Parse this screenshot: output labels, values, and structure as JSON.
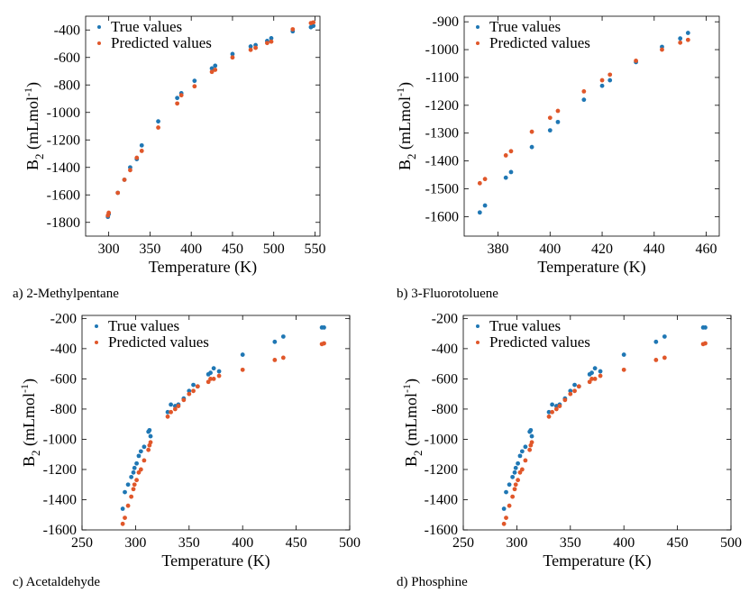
{
  "colors": {
    "true": "#1f77b4",
    "pred": "#e0572a",
    "axis": "#000000"
  },
  "legend_labels": {
    "true": "True values",
    "pred": "Predicted values"
  },
  "chart_data": [
    {
      "type": "scatter",
      "caption": "a) 2-Methylpentane",
      "xlabel": "Temperature (K)",
      "ylabel_main": "B",
      "ylabel_sub": "2",
      "ylabel_rest": " (mLmol",
      "ylabel_sup": "-1",
      "ylabel_end": ")",
      "xlim": [
        272,
        556
      ],
      "ylim": [
        -1900,
        -300
      ],
      "xticks": [
        "300",
        "350",
        "400",
        "450",
        "500",
        "550"
      ],
      "yticks": [
        "-1800",
        "-1600",
        "-1400",
        "-1200",
        "-1000",
        "-800",
        "-600",
        "-400"
      ],
      "series": [
        {
          "name": "True values",
          "x": [
            299,
            300,
            311,
            319,
            326,
            334,
            340,
            360,
            383,
            388,
            404,
            425,
            429,
            450,
            472,
            478,
            492,
            497,
            523,
            545,
            548
          ],
          "y": [
            -1760,
            -1740,
            -1585,
            -1490,
            -1400,
            -1340,
            -1240,
            -1065,
            -895,
            -860,
            -770,
            -680,
            -660,
            -575,
            -520,
            -510,
            -480,
            -460,
            -410,
            -380,
            -370
          ]
        },
        {
          "name": "Predicted values",
          "x": [
            299,
            300,
            311,
            319,
            326,
            334,
            340,
            360,
            383,
            388,
            404,
            425,
            429,
            450,
            472,
            478,
            492,
            497,
            523,
            545,
            548
          ],
          "y": [
            -1750,
            -1730,
            -1585,
            -1490,
            -1420,
            -1330,
            -1280,
            -1110,
            -935,
            -875,
            -810,
            -705,
            -690,
            -600,
            -545,
            -530,
            -495,
            -485,
            -395,
            -350,
            -345
          ]
        }
      ]
    },
    {
      "type": "scatter",
      "caption": "b) 3-Fluorotoluene",
      "xlabel": "Temperature (K)",
      "ylabel_main": "B",
      "ylabel_sub": "2",
      "ylabel_rest": " (mLmol",
      "ylabel_sup": "-1",
      "ylabel_end": ")",
      "xlim": [
        367,
        465
      ],
      "ylim": [
        -1670,
        -880
      ],
      "xticks": [
        "380",
        "400",
        "420",
        "440",
        "460"
      ],
      "yticks": [
        "-1600",
        "-1500",
        "-1400",
        "-1300",
        "-1200",
        "-1100",
        "-1000",
        "-900"
      ],
      "series": [
        {
          "name": "True values",
          "x": [
            373,
            375,
            383,
            385,
            393,
            400,
            403,
            413,
            420,
            423,
            433,
            443,
            450,
            453
          ],
          "y": [
            -1585,
            -1560,
            -1460,
            -1440,
            -1350,
            -1290,
            -1260,
            -1180,
            -1130,
            -1110,
            -1045,
            -990,
            -960,
            -940
          ]
        },
        {
          "name": "Predicted values",
          "x": [
            373,
            375,
            383,
            385,
            393,
            400,
            403,
            413,
            420,
            423,
            433,
            443,
            450,
            453
          ],
          "y": [
            -1480,
            -1465,
            -1380,
            -1365,
            -1295,
            -1245,
            -1220,
            -1150,
            -1110,
            -1090,
            -1040,
            -1000,
            -975,
            -965
          ]
        }
      ]
    },
    {
      "type": "scatter",
      "caption": "c) Acetaldehyde",
      "xlabel": "Temperature (K)",
      "ylabel_main": "B",
      "ylabel_sub": "2",
      "ylabel_rest": " (mLmol",
      "ylabel_sup": "-1",
      "ylabel_end": ")",
      "xlim": [
        250,
        500
      ],
      "ylim": [
        -1600,
        -180
      ],
      "xticks": [
        "250",
        "300",
        "350",
        "400",
        "450",
        "500"
      ],
      "yticks": [
        "-1600",
        "-1400",
        "-1200",
        "-1000",
        "-800",
        "-600",
        "-400",
        "-200"
      ],
      "series": [
        {
          "name": "True values",
          "x": [
            288,
            290,
            293,
            296,
            298,
            299,
            301,
            303,
            305,
            308,
            312,
            313,
            314,
            330,
            333,
            337,
            340,
            345,
            350,
            354,
            358,
            368,
            370,
            373,
            378,
            400,
            430,
            438,
            474,
            476
          ],
          "y": [
            -1460,
            -1350,
            -1300,
            -1250,
            -1220,
            -1190,
            -1160,
            -1110,
            -1080,
            -1050,
            -950,
            -940,
            -980,
            -820,
            -770,
            -780,
            -770,
            -730,
            -680,
            -640,
            -650,
            -570,
            -560,
            -530,
            -550,
            -440,
            -355,
            -320,
            -260,
            -260
          ]
        },
        {
          "name": "Predicted values",
          "x": [
            288,
            290,
            293,
            296,
            298,
            299,
            301,
            303,
            305,
            308,
            312,
            313,
            314,
            330,
            333,
            337,
            340,
            345,
            350,
            354,
            358,
            368,
            370,
            373,
            378,
            400,
            430,
            438,
            474,
            476
          ],
          "y": [
            -1560,
            -1520,
            -1440,
            -1380,
            -1330,
            -1300,
            -1270,
            -1220,
            -1200,
            -1140,
            -1070,
            -1040,
            -1020,
            -850,
            -820,
            -800,
            -780,
            -740,
            -700,
            -680,
            -650,
            -620,
            -600,
            -600,
            -580,
            -540,
            -475,
            -460,
            -370,
            -365
          ]
        }
      ]
    },
    {
      "type": "scatter",
      "caption": "d) Phosphine",
      "xlabel": "Temperature (K)",
      "ylabel_main": "B",
      "ylabel_sub": "2",
      "ylabel_rest": " (mLmol",
      "ylabel_sup": "-1",
      "ylabel_end": ")",
      "xlim": [
        250,
        500
      ],
      "ylim": [
        -1600,
        -180
      ],
      "xticks": [
        "250",
        "300",
        "350",
        "400",
        "450",
        "500"
      ],
      "yticks": [
        "-1600",
        "-1400",
        "-1200",
        "-1000",
        "-800",
        "-600",
        "-400",
        "-200"
      ],
      "series": [
        {
          "name": "True values",
          "x": [
            288,
            290,
            293,
            296,
            298,
            299,
            301,
            303,
            305,
            308,
            312,
            313,
            314,
            330,
            333,
            337,
            340,
            345,
            350,
            354,
            358,
            368,
            370,
            373,
            378,
            400,
            430,
            438,
            474,
            476
          ],
          "y": [
            -1460,
            -1350,
            -1300,
            -1250,
            -1220,
            -1190,
            -1160,
            -1110,
            -1080,
            -1050,
            -950,
            -940,
            -980,
            -820,
            -770,
            -780,
            -770,
            -730,
            -680,
            -640,
            -650,
            -570,
            -560,
            -530,
            -550,
            -440,
            -355,
            -320,
            -260,
            -260
          ]
        },
        {
          "name": "Predicted values",
          "x": [
            288,
            290,
            293,
            296,
            298,
            299,
            301,
            303,
            305,
            308,
            312,
            313,
            314,
            330,
            333,
            337,
            340,
            345,
            350,
            354,
            358,
            368,
            370,
            373,
            378,
            400,
            430,
            438,
            474,
            476
          ],
          "y": [
            -1560,
            -1520,
            -1440,
            -1380,
            -1330,
            -1300,
            -1270,
            -1220,
            -1200,
            -1140,
            -1070,
            -1040,
            -1020,
            -850,
            -820,
            -800,
            -780,
            -740,
            -700,
            -680,
            -650,
            -620,
            -600,
            -600,
            -580,
            -540,
            -475,
            -460,
            -370,
            -365
          ]
        }
      ]
    }
  ]
}
